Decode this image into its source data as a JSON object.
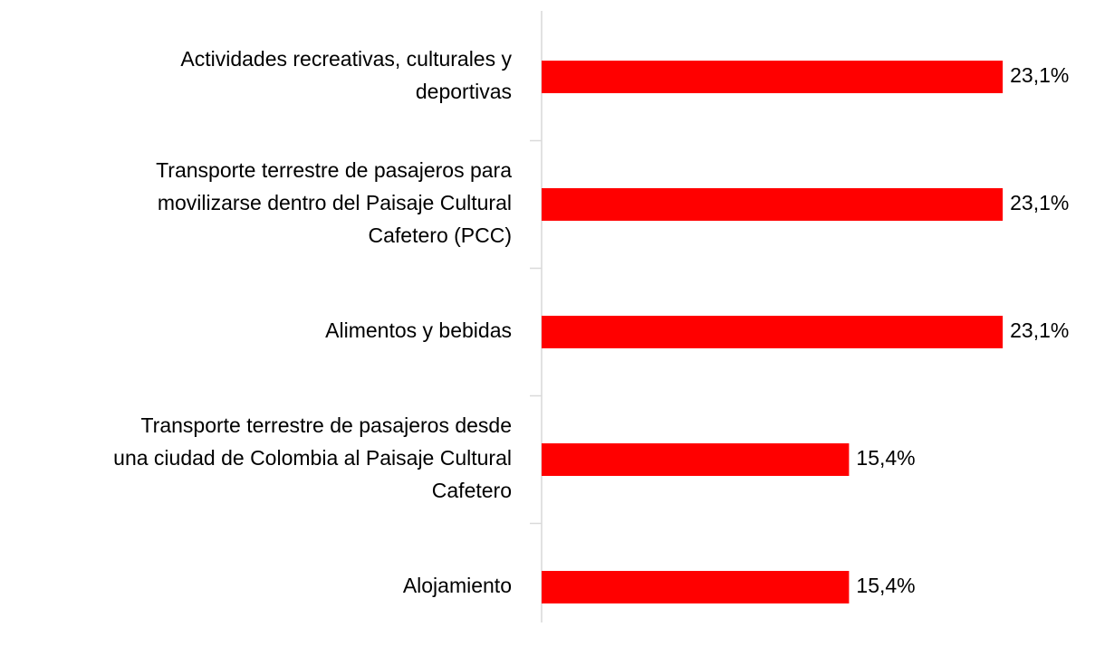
{
  "chart_data": {
    "type": "barh",
    "categories": [
      "Actividades recreativas, culturales y\ndeportivas",
      "Transporte terrestre de pasajeros para\nmovilizarse dentro del Paisaje Cultural\nCafetero (PCC)",
      "Alimentos y bebidas",
      "Transporte terrestre de pasajeros desde\nuna ciudad de Colombia al Paisaje Cultural\nCafetero",
      "Alojamiento"
    ],
    "values": [
      23.1,
      23.1,
      23.1,
      15.4,
      15.4
    ],
    "value_labels": [
      "23,1%",
      "23,1%",
      "23,1%",
      "15,4%",
      "15,4%"
    ],
    "color": "#ff0000",
    "xlim": [
      0,
      25
    ]
  }
}
